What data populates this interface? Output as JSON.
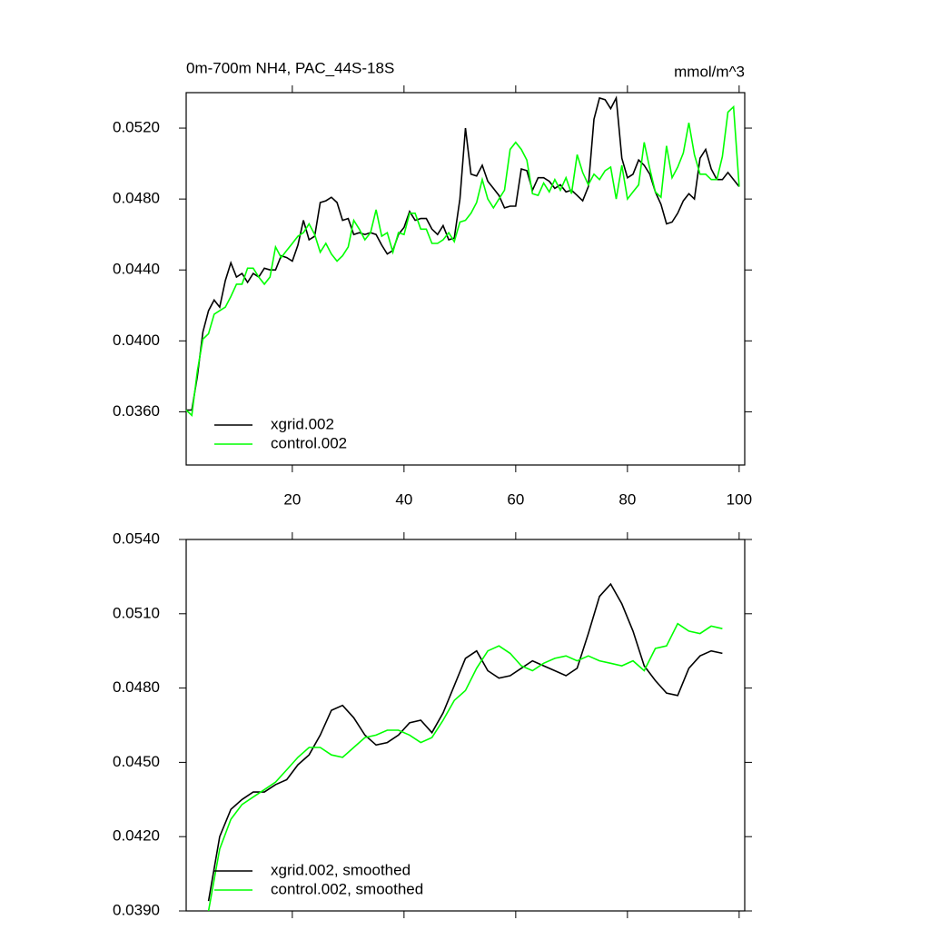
{
  "chart_data": [
    {
      "type": "line",
      "title": "0m-700m NH4, PAC_44S-18S",
      "units": "mmol/m^3",
      "x": [
        1,
        2,
        3,
        4,
        5,
        6,
        7,
        8,
        9,
        10,
        11,
        12,
        13,
        14,
        15,
        16,
        17,
        18,
        19,
        20,
        21,
        22,
        23,
        24,
        25,
        26,
        27,
        28,
        29,
        30,
        31,
        32,
        33,
        34,
        35,
        36,
        37,
        38,
        39,
        40,
        41,
        42,
        43,
        44,
        45,
        46,
        47,
        48,
        49,
        50,
        51,
        52,
        53,
        54,
        55,
        56,
        57,
        58,
        59,
        60,
        61,
        62,
        63,
        64,
        65,
        66,
        67,
        68,
        69,
        70,
        71,
        72,
        73,
        74,
        75,
        76,
        77,
        78,
        79,
        80,
        81,
        82,
        83,
        84,
        85,
        86,
        87,
        88,
        89,
        90,
        91,
        92,
        93,
        94,
        95,
        96,
        97,
        98,
        99,
        100
      ],
      "series": [
        {
          "name": "xgrid.002",
          "color": "#000000",
          "values": [
            0.0361,
            0.0361,
            0.038,
            0.0405,
            0.0417,
            0.0423,
            0.0419,
            0.0434,
            0.0444,
            0.0436,
            0.0438,
            0.0433,
            0.0438,
            0.0436,
            0.0441,
            0.044,
            0.044,
            0.0448,
            0.0447,
            0.0445,
            0.0454,
            0.0468,
            0.0457,
            0.0459,
            0.0478,
            0.0479,
            0.0481,
            0.0478,
            0.0468,
            0.0469,
            0.046,
            0.0461,
            0.046,
            0.0461,
            0.046,
            0.0454,
            0.0449,
            0.0451,
            0.046,
            0.0464,
            0.0473,
            0.0468,
            0.0469,
            0.0469,
            0.0463,
            0.046,
            0.0465,
            0.0457,
            0.0458,
            0.048,
            0.052,
            0.0494,
            0.0493,
            0.0499,
            0.049,
            0.0486,
            0.0482,
            0.0475,
            0.0476,
            0.0476,
            0.0497,
            0.0496,
            0.0485,
            0.0492,
            0.0492,
            0.049,
            0.0486,
            0.0488,
            0.0484,
            0.0485,
            0.0482,
            0.0479,
            0.0487,
            0.0525,
            0.0537,
            0.0536,
            0.0531,
            0.0537,
            0.0503,
            0.0492,
            0.0494,
            0.0502,
            0.0499,
            0.0494,
            0.0484,
            0.0477,
            0.0466,
            0.0467,
            0.0472,
            0.0479,
            0.0483,
            0.048,
            0.0503,
            0.0508,
            0.0497,
            0.0491,
            0.0491,
            0.0495,
            0.0491,
            0.0487
          ]
        },
        {
          "name": "control.002",
          "color": "#00ff00",
          "values": [
            0.0361,
            0.0358,
            0.0383,
            0.0401,
            0.0404,
            0.0415,
            0.0417,
            0.0419,
            0.0425,
            0.0432,
            0.0432,
            0.0441,
            0.0441,
            0.0436,
            0.0432,
            0.0436,
            0.0453,
            0.0447,
            0.0451,
            0.0455,
            0.0459,
            0.0461,
            0.0466,
            0.046,
            0.045,
            0.0455,
            0.0449,
            0.0445,
            0.0448,
            0.0453,
            0.0468,
            0.0463,
            0.0457,
            0.0461,
            0.0474,
            0.0459,
            0.0461,
            0.045,
            0.0461,
            0.046,
            0.0472,
            0.0472,
            0.0463,
            0.0463,
            0.0455,
            0.0455,
            0.0457,
            0.0461,
            0.0456,
            0.0467,
            0.0468,
            0.0472,
            0.0478,
            0.0491,
            0.048,
            0.0475,
            0.048,
            0.0485,
            0.0508,
            0.0512,
            0.0508,
            0.0502,
            0.0483,
            0.0482,
            0.0489,
            0.0484,
            0.0491,
            0.0485,
            0.0492,
            0.0483,
            0.0505,
            0.0495,
            0.0488,
            0.0494,
            0.0491,
            0.0496,
            0.0498,
            0.048,
            0.0499,
            0.048,
            0.0484,
            0.0488,
            0.0512,
            0.0497,
            0.0484,
            0.0481,
            0.051,
            0.0492,
            0.0498,
            0.0506,
            0.0523,
            0.0505,
            0.0494,
            0.0494,
            0.0491,
            0.0491,
            0.0504,
            0.0529,
            0.0532,
            0.0487
          ]
        }
      ],
      "xlim": [
        1,
        101
      ],
      "xticks": [
        20,
        40,
        60,
        80,
        100
      ],
      "xtick_labels": true,
      "ylim": [
        0.033,
        0.054
      ],
      "yticks": [
        {
          "value": 0.036,
          "label": "0.0360"
        },
        {
          "value": 0.04,
          "label": "0.0400"
        },
        {
          "value": 0.044,
          "label": "0.0440"
        },
        {
          "value": 0.048,
          "label": "0.0480"
        },
        {
          "value": 0.052,
          "label": "0.0520"
        }
      ],
      "legend": "lower left"
    },
    {
      "type": "line",
      "x": [
        5,
        7,
        9,
        11,
        13,
        15,
        17,
        19,
        21,
        23,
        25,
        27,
        29,
        31,
        33,
        35,
        37,
        39,
        41,
        43,
        45,
        47,
        49,
        51,
        53,
        55,
        57,
        59,
        61,
        63,
        65,
        67,
        69,
        71,
        73,
        75,
        77,
        79,
        81,
        83,
        85,
        87,
        89,
        91,
        93,
        95,
        97
      ],
      "series": [
        {
          "name": "xgrid.002, smoothed",
          "color": "#000000",
          "values": [
            0.0394,
            0.042,
            0.0431,
            0.0435,
            0.0438,
            0.0438,
            0.0441,
            0.0443,
            0.0449,
            0.0453,
            0.0461,
            0.0471,
            0.0473,
            0.0468,
            0.0461,
            0.0457,
            0.0458,
            0.0461,
            0.0466,
            0.0467,
            0.0462,
            0.047,
            0.0481,
            0.0492,
            0.0495,
            0.0487,
            0.0484,
            0.0485,
            0.0488,
            0.0491,
            0.0489,
            0.0487,
            0.0485,
            0.0488,
            0.0502,
            0.0517,
            0.0522,
            0.0514,
            0.0503,
            0.0489,
            0.0483,
            0.0478,
            0.0477,
            0.0488,
            0.0493,
            0.0495,
            0.0494
          ]
        },
        {
          "name": "control.002, smoothed",
          "color": "#00ff00",
          "values": [
            0.039,
            0.0415,
            0.0427,
            0.0433,
            0.0436,
            0.0439,
            0.0442,
            0.0447,
            0.0452,
            0.0456,
            0.0456,
            0.0453,
            0.0452,
            0.0456,
            0.046,
            0.0461,
            0.0463,
            0.0463,
            0.0461,
            0.0458,
            0.046,
            0.0467,
            0.0475,
            0.0479,
            0.0488,
            0.0495,
            0.0497,
            0.0494,
            0.0489,
            0.0487,
            0.049,
            0.0492,
            0.0493,
            0.0491,
            0.0493,
            0.0491,
            0.049,
            0.0489,
            0.0491,
            0.0487,
            0.0496,
            0.0497,
            0.0506,
            0.0503,
            0.0502,
            0.0505,
            0.0504
          ]
        }
      ],
      "xlim": [
        1,
        101
      ],
      "xticks": [
        20,
        40,
        60,
        80,
        100
      ],
      "xtick_labels": false,
      "ylim": [
        0.039,
        0.054
      ],
      "yticks": [
        {
          "value": 0.039,
          "label": "0.0390"
        },
        {
          "value": 0.042,
          "label": "0.0420"
        },
        {
          "value": 0.045,
          "label": "0.0450"
        },
        {
          "value": 0.048,
          "label": "0.0480"
        },
        {
          "value": 0.051,
          "label": "0.0510"
        },
        {
          "value": 0.054,
          "label": "0.0540"
        }
      ],
      "legend": "lower left"
    }
  ]
}
